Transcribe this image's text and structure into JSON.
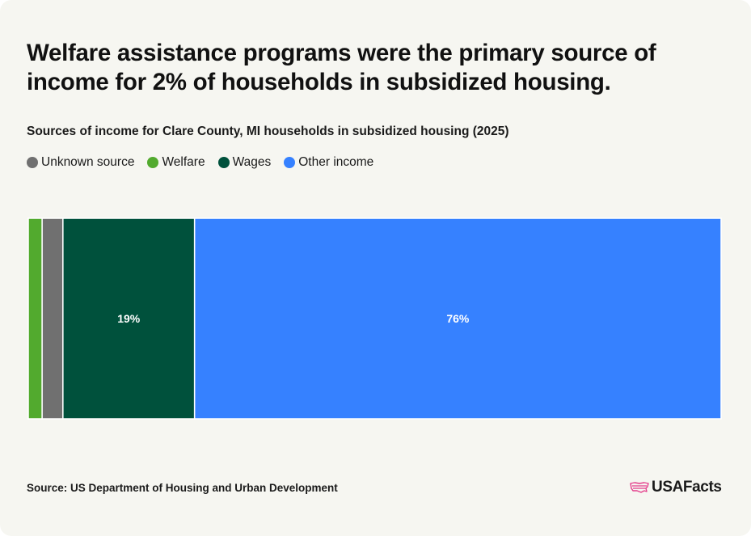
{
  "headline": "Welfare assistance programs were the primary source of income for 2% of households in subsidized housing.",
  "subtitle": "Sources of income for Clare County, MI households in subsidized housing (2025)",
  "source": "Source: US Department of Housing and Urban Development",
  "brand": "USAFacts",
  "chart_data": {
    "type": "bar",
    "orientation": "horizontal-stacked-100",
    "legend_position": "top-left",
    "grid": false,
    "categories": [
      "Clare County, MI"
    ],
    "series": [
      {
        "name": "Welfare",
        "values": [
          2
        ],
        "color": "#52aa2e",
        "label": ""
      },
      {
        "name": "Unknown source",
        "values": [
          3
        ],
        "color": "#707070",
        "label": ""
      },
      {
        "name": "Wages",
        "values": [
          19
        ],
        "color": "#00513c",
        "label": "19%"
      },
      {
        "name": "Other income",
        "values": [
          76
        ],
        "color": "#3681ff",
        "label": "76%"
      }
    ],
    "legend": [
      {
        "name": "Unknown source",
        "color": "#707070"
      },
      {
        "name": "Welfare",
        "color": "#52aa2e"
      },
      {
        "name": "Wages",
        "color": "#00513c"
      },
      {
        "name": "Other income",
        "color": "#3681ff"
      }
    ],
    "xlim": [
      0,
      100
    ]
  }
}
